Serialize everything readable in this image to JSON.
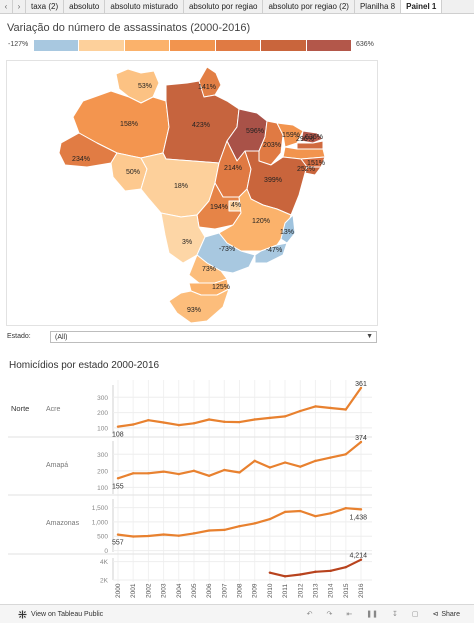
{
  "tabs": [
    {
      "label": "taxa (2)"
    },
    {
      "label": "absoluto"
    },
    {
      "label": "absoluto misturado"
    },
    {
      "label": "absoluto por regiao"
    },
    {
      "label": "absoluto por regiao (2)"
    },
    {
      "label": "Planilha 8"
    },
    {
      "label": "Painel 1",
      "active": true
    }
  ],
  "map_title": "Variação do número de assassinatos (2000-2016)",
  "legend": {
    "min_label": "-127%",
    "max_label": "636%",
    "colors": [
      "#a8c8e0",
      "#fdd09b",
      "#fbb26b",
      "#f2944e",
      "#e07a43",
      "#c9653c",
      "#b3574a"
    ]
  },
  "states": [
    {
      "code": "RR",
      "label": "53%",
      "color": "#fcc283"
    },
    {
      "code": "AP",
      "label": "141%",
      "color": "#e27f45"
    },
    {
      "code": "AM",
      "label": "158%",
      "color": "#f3954f"
    },
    {
      "code": "PA",
      "label": "423%",
      "color": "#c6643e"
    },
    {
      "code": "MA",
      "label": "596%",
      "color": "#a95248"
    },
    {
      "code": "PI",
      "label": "203%",
      "color": "#e07a43"
    },
    {
      "code": "CE",
      "label": "159%",
      "color": "#f2944e"
    },
    {
      "code": "RN",
      "label": "636%",
      "color": "#b3574a"
    },
    {
      "code": "PB",
      "label": "296%",
      "color": "#d06a3f"
    },
    {
      "code": "PE",
      "label": "151%",
      "color": "#f2944e"
    },
    {
      "code": "AL",
      "label": "252%",
      "color": "#d46c40"
    },
    {
      "code": "AC",
      "label": "234%",
      "color": "#e17c44"
    },
    {
      "code": "RO",
      "label": "50%",
      "color": "#fdc98f"
    },
    {
      "code": "MT",
      "label": "18%",
      "color": "#fdd09b"
    },
    {
      "code": "TO",
      "label": "214%",
      "color": "#e07a43"
    },
    {
      "code": "BA",
      "label": "399%",
      "color": "#c9653c"
    },
    {
      "code": "SE",
      "label": "",
      "color": "#c9653c"
    },
    {
      "code": "GO",
      "label": "194%",
      "color": "#e68447"
    },
    {
      "code": "DF",
      "label": "4%",
      "color": "#fdd09b"
    },
    {
      "code": "MG",
      "label": "120%",
      "color": "#fbb26b"
    },
    {
      "code": "ES",
      "label": "13%",
      "color": "#9fc3de"
    },
    {
      "code": "MS",
      "label": "3%",
      "color": "#fdd6a6"
    },
    {
      "code": "SP",
      "label": "-73%",
      "color": "#a8c8e0"
    },
    {
      "code": "RJ",
      "label": "-47%",
      "color": "#a8c8e0"
    },
    {
      "code": "PR",
      "label": "73%",
      "color": "#fcbd7b"
    },
    {
      "code": "SC",
      "label": "125%",
      "color": "#fbb26b"
    },
    {
      "code": "RS",
      "label": "93%",
      "color": "#fcbd7b"
    }
  ],
  "filter": {
    "label": "Estado:",
    "value": "(All)"
  },
  "lines_title": "Homicídios por estado 2000-2016",
  "chart_data": {
    "type": "line",
    "region": "Norte",
    "x": [
      2000,
      2001,
      2002,
      2003,
      2004,
      2005,
      2006,
      2007,
      2008,
      2009,
      2010,
      2011,
      2012,
      2013,
      2014,
      2015,
      2016
    ],
    "x_tick_labels": [
      "2000",
      "2001",
      "2002",
      "2003",
      "2004",
      "2005",
      "2006",
      "2007",
      "2008",
      "2009",
      "2010",
      "2011",
      "2012",
      "2013",
      "2014",
      "2015",
      "2016"
    ],
    "panels": [
      {
        "state": "Acre",
        "ticks": [
          100,
          200,
          300
        ],
        "ylim": [
          60,
          380
        ],
        "start_label": "108",
        "end_label": "361",
        "values": [
          108,
          122,
          150,
          135,
          118,
          130,
          155,
          140,
          138,
          155,
          165,
          175,
          210,
          240,
          230,
          220,
          361
        ]
      },
      {
        "state": "Amapá",
        "ticks": [
          100,
          200,
          300
        ],
        "ylim": [
          60,
          380
        ],
        "start_label": "155",
        "end_label": "374",
        "values": [
          155,
          185,
          185,
          195,
          180,
          200,
          170,
          205,
          190,
          260,
          220,
          250,
          225,
          260,
          280,
          300,
          374
        ]
      },
      {
        "state": "Amazonas",
        "ticks": [
          0,
          500,
          1000,
          1500
        ],
        "ylim": [
          -50,
          1800
        ],
        "start_label": "557",
        "end_label": "1,438",
        "values": [
          557,
          490,
          510,
          560,
          520,
          600,
          700,
          720,
          850,
          950,
          1100,
          1350,
          1380,
          1200,
          1300,
          1480,
          1438
        ]
      },
      {
        "state": "",
        "ticks": [
          0,
          2000,
          4000
        ],
        "start_label": "",
        "end_label": "4,214",
        "values": [
          null,
          null,
          null,
          null,
          null,
          null,
          null,
          null,
          null,
          null,
          2800,
          2400,
          2600,
          2900,
          3000,
          3400,
          4214
        ]
      }
    ]
  },
  "bottom": {
    "view_label": "View on Tableau Public",
    "share_label": "Share",
    "undo_icon": "undo-icon",
    "redo_icon": "redo-icon",
    "revert_icon": "revert-icon",
    "pause_icon": "pause-icon",
    "download_icon": "download-icon",
    "fullscreen_icon": "fullscreen-icon",
    "share_icon": "share-icon"
  }
}
